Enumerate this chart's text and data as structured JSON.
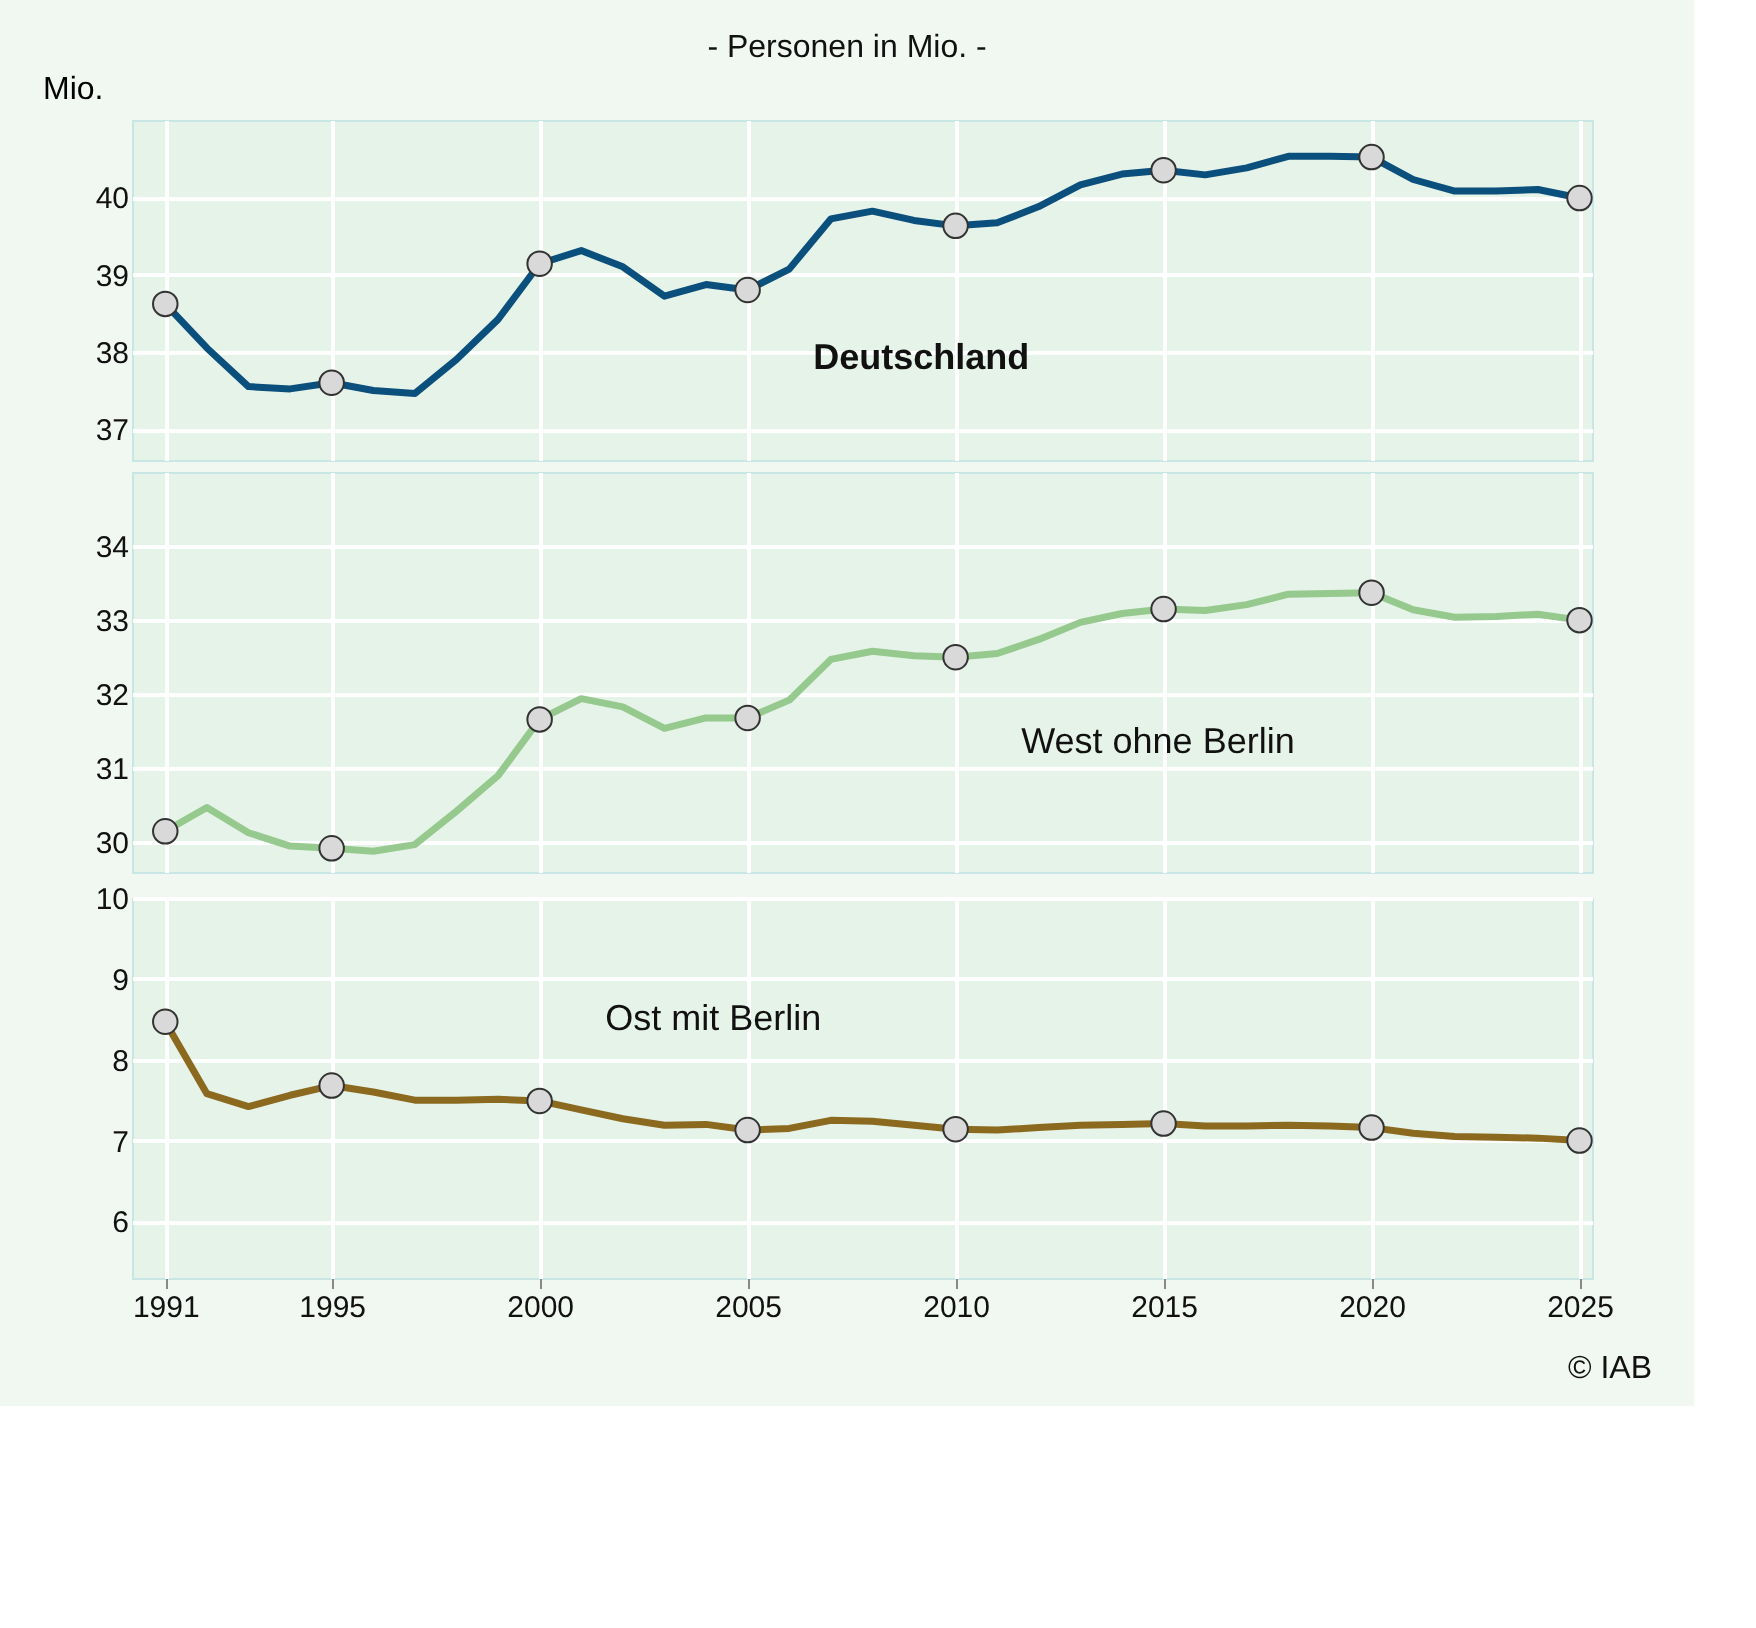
{
  "chart_data": [
    {
      "type": "line",
      "title": "- Personen in Mio. -",
      "ylabel": "Mio.",
      "x": [
        1991,
        1992,
        1993,
        1994,
        1995,
        1996,
        1997,
        1998,
        1999,
        2000,
        2001,
        2002,
        2003,
        2004,
        2005,
        2006,
        2007,
        2008,
        2009,
        2010,
        2011,
        2012,
        2013,
        2014,
        2015,
        2016,
        2017,
        2018,
        2019,
        2020,
        2021,
        2022,
        2023,
        2024,
        2025
      ],
      "xlim": [
        1990.2,
        2025.3
      ],
      "xticks": [
        1991,
        1995,
        2000,
        2005,
        2010,
        2015,
        2020,
        2025
      ],
      "ylim": [
        36.6,
        41.0
      ],
      "yticks": [
        37,
        38,
        39,
        40
      ],
      "grid": true,
      "tick_labels": "y",
      "line_style": "solid",
      "series": [
        {
          "color": "#0b4f7c",
          "values": [
            38.62,
            38.05,
            37.55,
            37.52,
            37.6,
            37.5,
            37.46,
            37.9,
            38.42,
            39.14,
            39.31,
            39.1,
            38.72,
            38.87,
            38.8,
            39.07,
            39.72,
            39.82,
            39.7,
            39.63,
            39.67,
            39.88,
            40.16,
            40.3,
            40.35,
            40.29,
            40.38,
            40.53,
            40.53,
            40.52,
            40.23,
            40.08,
            40.08,
            40.1,
            39.99
          ]
        },
        {
          "type": "scatter",
          "color": "#d9d9d9",
          "marker": "circle",
          "x": [
            1991,
            1995,
            2000,
            2005,
            2010,
            2015,
            2020,
            2025
          ],
          "values": [
            38.62,
            37.6,
            39.14,
            38.8,
            39.63,
            40.35,
            40.52,
            39.99
          ]
        }
      ],
      "annotations": [
        {
          "text": "Deutschland",
          "x": 2006,
          "y": 39.07
        }
      ]
    },
    {
      "type": "line",
      "x": [
        1991,
        1992,
        1993,
        1994,
        1995,
        1996,
        1997,
        1998,
        1999,
        2000,
        2001,
        2002,
        2003,
        2004,
        2005,
        2006,
        2007,
        2008,
        2009,
        2010,
        2011,
        2012,
        2013,
        2014,
        2015,
        2016,
        2017,
        2018,
        2019,
        2020,
        2021,
        2022,
        2023,
        2024,
        2025
      ],
      "xlim": [
        1990.2,
        2025.3
      ],
      "xticks": [
        1991,
        1995,
        2000,
        2005,
        2010,
        2015,
        2020,
        2025
      ],
      "ylim": [
        29.6,
        35.0
      ],
      "yticks": [
        30,
        31,
        32,
        33,
        34
      ],
      "grid": true,
      "tick_labels": "y",
      "line_style": "solid",
      "series": [
        {
          "color": "#96c98e",
          "values": [
            30.15,
            30.47,
            30.13,
            29.95,
            29.92,
            29.88,
            29.97,
            30.42,
            30.9,
            31.66,
            31.94,
            31.83,
            31.54,
            31.68,
            31.68,
            31.92,
            32.47,
            32.58,
            32.52,
            32.5,
            32.55,
            32.74,
            32.97,
            33.09,
            33.15,
            33.13,
            33.21,
            33.35,
            33.36,
            33.37,
            33.14,
            33.04,
            33.05,
            33.08,
            33.0
          ]
        },
        {
          "type": "scatter",
          "color": "#d9d9d9",
          "marker": "circle",
          "x": [
            1991,
            1995,
            2000,
            2005,
            2010,
            2015,
            2020,
            2025
          ],
          "values": [
            30.15,
            29.92,
            31.66,
            31.68,
            32.5,
            33.15,
            33.37,
            33.0
          ]
        }
      ],
      "annotations": [
        {
          "text": "West ohne Berlin",
          "x": 2011,
          "y": 32.55
        }
      ]
    },
    {
      "type": "line",
      "x": [
        1991,
        1992,
        1993,
        1994,
        1995,
        1996,
        1997,
        1998,
        1999,
        2000,
        2001,
        2002,
        2003,
        2004,
        2005,
        2006,
        2007,
        2008,
        2009,
        2010,
        2011,
        2012,
        2013,
        2014,
        2015,
        2016,
        2017,
        2018,
        2019,
        2020,
        2021,
        2022,
        2023,
        2024,
        2025
      ],
      "xlim": [
        1990.2,
        2025.3
      ],
      "xticks": [
        1991,
        1995,
        2000,
        2005,
        2010,
        2015,
        2020,
        2025
      ],
      "ylim": [
        5.3,
        10.0
      ],
      "yticks": [
        6,
        7,
        8,
        9,
        10
      ],
      "grid": true,
      "line_style": "solid",
      "series": [
        {
          "color": "#8b6a1f",
          "values": [
            8.47,
            7.58,
            7.42,
            7.56,
            7.68,
            7.6,
            7.5,
            7.5,
            7.51,
            7.49,
            7.38,
            7.27,
            7.19,
            7.2,
            7.13,
            7.15,
            7.25,
            7.24,
            7.19,
            7.14,
            7.13,
            7.16,
            7.19,
            7.2,
            7.21,
            7.18,
            7.18,
            7.19,
            7.18,
            7.16,
            7.09,
            7.05,
            7.04,
            7.03,
            7.0
          ]
        },
        {
          "type": "scatter",
          "color": "#d9d9d9",
          "marker": "circle",
          "x": [
            1991,
            1995,
            2000,
            2005,
            2010,
            2015,
            2020,
            2025
          ],
          "values": [
            8.47,
            7.68,
            7.49,
            7.13,
            7.14,
            7.21,
            7.16,
            7.0
          ]
        }
      ],
      "annotations": [
        "© IAB",
        {
          "text": "Ost mit Berlin",
          "x": 2001,
          "y": 7.38
        }
      ]
    }
  ]
}
